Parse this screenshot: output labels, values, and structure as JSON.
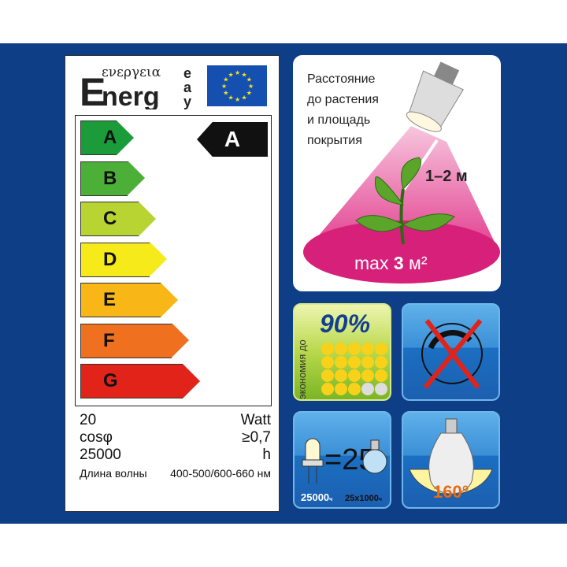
{
  "label": {
    "logo_text": "Energy",
    "logo_greek": "ενεργεια",
    "logo_side": "iea",
    "classes": [
      {
        "letter": "A",
        "color": "#1b9b3a"
      },
      {
        "letter": "B",
        "color": "#4caf38"
      },
      {
        "letter": "C",
        "color": "#b7d433"
      },
      {
        "letter": "D",
        "color": "#f7ea1a"
      },
      {
        "letter": "E",
        "color": "#f8b617"
      },
      {
        "letter": "F",
        "color": "#ef7120"
      },
      {
        "letter": "G",
        "color": "#e2231a"
      }
    ],
    "rating": "A",
    "specs": [
      {
        "left": "20",
        "right": "Watt"
      },
      {
        "left": "cosφ",
        "right": "≥0,7"
      },
      {
        "left": "25000",
        "right": "h"
      },
      {
        "left": "Длина волны",
        "right": "400-500/600-660 нм"
      }
    ]
  },
  "distance_card": {
    "caption": "Расстояние до растения и площадь покрытия",
    "distance": "1–2 м",
    "area_prefix": "max ",
    "area_value": "3",
    "area_unit": " м²"
  },
  "tiles": {
    "savings": {
      "label": "экономия до",
      "value": "90%",
      "dots_on": 18,
      "dots_total": 20
    },
    "no_flicker": {
      "icon": "no-flicker-icon"
    },
    "lifetime": {
      "equals": "=25",
      "led_hours": "25000",
      "led_unit": "ч",
      "bulb_hours": "25x1000",
      "bulb_unit": "ч"
    },
    "angle": {
      "value": "160°"
    }
  }
}
